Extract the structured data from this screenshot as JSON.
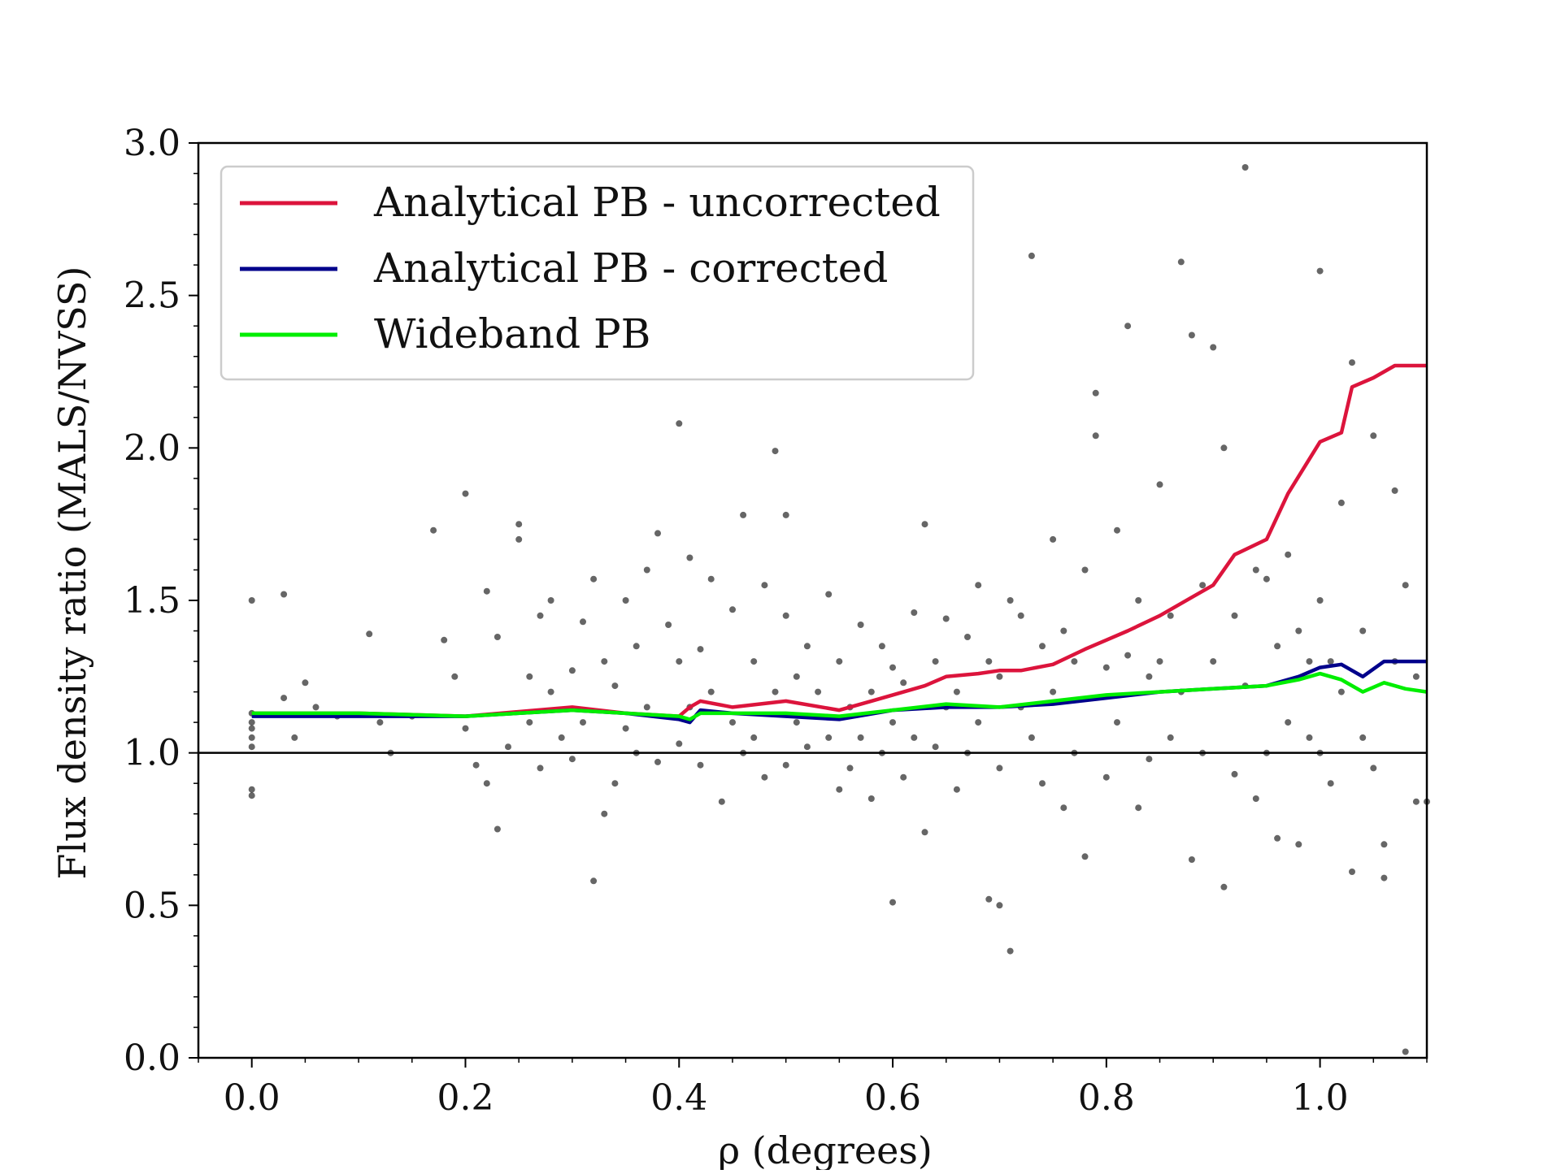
{
  "chart_data": {
    "type": "scatter",
    "title": "",
    "xlabel": "ρ (degrees)",
    "ylabel": "Flux density ratio (MALS/NVSS)",
    "xlim": [
      -0.05,
      1.1
    ],
    "ylim": [
      0.0,
      3.0
    ],
    "x_ticks": [
      "0.0",
      "0.2",
      "0.4",
      "0.6",
      "0.8",
      "1.0"
    ],
    "x_tick_values": [
      0.0,
      0.2,
      0.4,
      0.6,
      0.8,
      1.0
    ],
    "y_ticks": [
      "0.0",
      "0.5",
      "1.0",
      "1.5",
      "2.0",
      "2.5",
      "3.0"
    ],
    "y_tick_values": [
      0.0,
      0.5,
      1.0,
      1.5,
      2.0,
      2.5,
      3.0
    ],
    "reference_line_y": 1.0,
    "grid": false,
    "legend_position": "top-left",
    "series": [
      {
        "name": "Analytical PB - uncorrected",
        "color": "#dc143c",
        "x": [
          0.0,
          0.1,
          0.2,
          0.3,
          0.35,
          0.4,
          0.41,
          0.42,
          0.45,
          0.5,
          0.55,
          0.58,
          0.6,
          0.63,
          0.65,
          0.68,
          0.7,
          0.72,
          0.75,
          0.78,
          0.8,
          0.82,
          0.85,
          0.88,
          0.9,
          0.92,
          0.95,
          0.97,
          1.0,
          1.02,
          1.03,
          1.05,
          1.07,
          1.1
        ],
        "y": [
          1.13,
          1.13,
          1.12,
          1.15,
          1.13,
          1.12,
          1.15,
          1.17,
          1.15,
          1.17,
          1.14,
          1.17,
          1.19,
          1.22,
          1.25,
          1.26,
          1.27,
          1.27,
          1.29,
          1.34,
          1.37,
          1.4,
          1.45,
          1.51,
          1.55,
          1.65,
          1.7,
          1.85,
          2.02,
          2.05,
          2.2,
          2.23,
          2.27,
          2.27
        ]
      },
      {
        "name": "Analytical PB - corrected",
        "color": "#00008b",
        "x": [
          0.0,
          0.1,
          0.2,
          0.3,
          0.35,
          0.4,
          0.41,
          0.42,
          0.45,
          0.5,
          0.55,
          0.6,
          0.65,
          0.7,
          0.75,
          0.8,
          0.85,
          0.9,
          0.95,
          0.98,
          1.0,
          1.02,
          1.04,
          1.06,
          1.08,
          1.1
        ],
        "y": [
          1.12,
          1.12,
          1.12,
          1.14,
          1.13,
          1.11,
          1.1,
          1.14,
          1.13,
          1.12,
          1.11,
          1.14,
          1.15,
          1.15,
          1.16,
          1.18,
          1.2,
          1.21,
          1.22,
          1.25,
          1.28,
          1.29,
          1.25,
          1.3,
          1.3,
          1.3
        ]
      },
      {
        "name": "Wideband PB",
        "color": "#00ee00",
        "x": [
          0.0,
          0.1,
          0.2,
          0.3,
          0.35,
          0.4,
          0.41,
          0.42,
          0.45,
          0.5,
          0.55,
          0.6,
          0.65,
          0.7,
          0.75,
          0.8,
          0.85,
          0.9,
          0.95,
          0.98,
          1.0,
          1.02,
          1.04,
          1.06,
          1.08,
          1.1
        ],
        "y": [
          1.13,
          1.13,
          1.12,
          1.14,
          1.13,
          1.12,
          1.11,
          1.13,
          1.13,
          1.13,
          1.12,
          1.14,
          1.16,
          1.15,
          1.17,
          1.19,
          1.2,
          1.21,
          1.22,
          1.24,
          1.26,
          1.24,
          1.2,
          1.23,
          1.21,
          1.2
        ]
      }
    ],
    "scatter_points": [
      [
        0.0,
        1.5
      ],
      [
        0.0,
        1.1
      ],
      [
        0.0,
        1.05
      ],
      [
        0.0,
        1.02
      ],
      [
        0.0,
        0.88
      ],
      [
        0.0,
        0.86
      ],
      [
        0.0,
        1.13
      ],
      [
        0.0,
        1.08
      ],
      [
        0.03,
        1.52
      ],
      [
        0.03,
        1.18
      ],
      [
        0.04,
        1.05
      ],
      [
        0.05,
        1.23
      ],
      [
        0.06,
        1.15
      ],
      [
        0.08,
        1.12
      ],
      [
        0.11,
        1.39
      ],
      [
        0.12,
        1.1
      ],
      [
        0.13,
        1.0
      ],
      [
        0.15,
        1.12
      ],
      [
        0.17,
        1.73
      ],
      [
        0.18,
        1.37
      ],
      [
        0.19,
        1.25
      ],
      [
        0.2,
        1.85
      ],
      [
        0.2,
        1.08
      ],
      [
        0.21,
        0.96
      ],
      [
        0.22,
        1.53
      ],
      [
        0.22,
        0.9
      ],
      [
        0.23,
        1.38
      ],
      [
        0.23,
        0.75
      ],
      [
        0.24,
        1.02
      ],
      [
        0.25,
        1.75
      ],
      [
        0.25,
        1.7
      ],
      [
        0.26,
        1.25
      ],
      [
        0.26,
        1.1
      ],
      [
        0.27,
        1.45
      ],
      [
        0.27,
        0.95
      ],
      [
        0.28,
        1.5
      ],
      [
        0.28,
        1.2
      ],
      [
        0.29,
        1.05
      ],
      [
        0.3,
        1.27
      ],
      [
        0.3,
        0.98
      ],
      [
        0.31,
        1.43
      ],
      [
        0.31,
        1.1
      ],
      [
        0.32,
        1.57
      ],
      [
        0.32,
        0.58
      ],
      [
        0.33,
        1.3
      ],
      [
        0.33,
        0.8
      ],
      [
        0.34,
        1.22
      ],
      [
        0.34,
        0.9
      ],
      [
        0.35,
        1.5
      ],
      [
        0.35,
        1.08
      ],
      [
        0.36,
        1.35
      ],
      [
        0.36,
        1.0
      ],
      [
        0.37,
        1.6
      ],
      [
        0.37,
        1.15
      ],
      [
        0.38,
        1.72
      ],
      [
        0.38,
        0.97
      ],
      [
        0.39,
        1.42
      ],
      [
        0.4,
        2.08
      ],
      [
        0.4,
        1.3
      ],
      [
        0.4,
        1.03
      ],
      [
        0.41,
        1.64
      ],
      [
        0.41,
        1.15
      ],
      [
        0.42,
        1.34
      ],
      [
        0.42,
        0.96
      ],
      [
        0.43,
        1.57
      ],
      [
        0.43,
        1.2
      ],
      [
        0.44,
        0.84
      ],
      [
        0.45,
        1.47
      ],
      [
        0.45,
        1.1
      ],
      [
        0.46,
        1.78
      ],
      [
        0.46,
        1.0
      ],
      [
        0.47,
        1.3
      ],
      [
        0.47,
        1.05
      ],
      [
        0.48,
        1.55
      ],
      [
        0.48,
        0.92
      ],
      [
        0.49,
        1.99
      ],
      [
        0.49,
        1.2
      ],
      [
        0.5,
        1.78
      ],
      [
        0.5,
        1.45
      ],
      [
        0.5,
        0.96
      ],
      [
        0.51,
        1.25
      ],
      [
        0.51,
        1.1
      ],
      [
        0.52,
        1.35
      ],
      [
        0.52,
        1.02
      ],
      [
        0.53,
        1.2
      ],
      [
        0.54,
        1.52
      ],
      [
        0.54,
        1.05
      ],
      [
        0.55,
        1.3
      ],
      [
        0.55,
        0.88
      ],
      [
        0.56,
        1.15
      ],
      [
        0.56,
        0.95
      ],
      [
        0.57,
        1.42
      ],
      [
        0.57,
        1.05
      ],
      [
        0.58,
        1.2
      ],
      [
        0.58,
        0.85
      ],
      [
        0.59,
        1.35
      ],
      [
        0.59,
        1.0
      ],
      [
        0.6,
        0.51
      ],
      [
        0.6,
        1.28
      ],
      [
        0.6,
        1.1
      ],
      [
        0.61,
        1.23
      ],
      [
        0.61,
        0.92
      ],
      [
        0.62,
        1.46
      ],
      [
        0.62,
        1.05
      ],
      [
        0.63,
        0.74
      ],
      [
        0.63,
        1.75
      ],
      [
        0.64,
        1.3
      ],
      [
        0.64,
        1.02
      ],
      [
        0.65,
        1.44
      ],
      [
        0.65,
        1.15
      ],
      [
        0.66,
        1.2
      ],
      [
        0.66,
        0.88
      ],
      [
        0.67,
        1.38
      ],
      [
        0.67,
        1.0
      ],
      [
        0.68,
        1.55
      ],
      [
        0.68,
        1.1
      ],
      [
        0.69,
        1.3
      ],
      [
        0.69,
        0.52
      ],
      [
        0.7,
        0.5
      ],
      [
        0.7,
        1.25
      ],
      [
        0.7,
        0.95
      ],
      [
        0.71,
        1.5
      ],
      [
        0.71,
        0.35
      ],
      [
        0.72,
        1.15
      ],
      [
        0.72,
        1.45
      ],
      [
        0.73,
        2.63
      ],
      [
        0.73,
        1.05
      ],
      [
        0.74,
        1.35
      ],
      [
        0.74,
        0.9
      ],
      [
        0.75,
        1.7
      ],
      [
        0.75,
        1.2
      ],
      [
        0.76,
        1.4
      ],
      [
        0.76,
        0.82
      ],
      [
        0.77,
        1.3
      ],
      [
        0.77,
        1.0
      ],
      [
        0.78,
        1.6
      ],
      [
        0.78,
        0.66
      ],
      [
        0.79,
        2.18
      ],
      [
        0.79,
        2.04
      ],
      [
        0.8,
        1.28
      ],
      [
        0.8,
        0.92
      ],
      [
        0.81,
        1.73
      ],
      [
        0.81,
        1.1
      ],
      [
        0.82,
        2.4
      ],
      [
        0.82,
        1.32
      ],
      [
        0.83,
        1.5
      ],
      [
        0.83,
        0.82
      ],
      [
        0.84,
        1.25
      ],
      [
        0.84,
        0.98
      ],
      [
        0.85,
        1.88
      ],
      [
        0.85,
        1.3
      ],
      [
        0.86,
        1.45
      ],
      [
        0.86,
        1.05
      ],
      [
        0.87,
        2.61
      ],
      [
        0.87,
        1.2
      ],
      [
        0.88,
        2.37
      ],
      [
        0.88,
        0.65
      ],
      [
        0.89,
        1.55
      ],
      [
        0.89,
        1.0
      ],
      [
        0.9,
        2.33
      ],
      [
        0.9,
        1.3
      ],
      [
        0.91,
        2.0
      ],
      [
        0.91,
        0.56
      ],
      [
        0.92,
        1.45
      ],
      [
        0.92,
        0.93
      ],
      [
        0.93,
        2.92
      ],
      [
        0.93,
        1.22
      ],
      [
        0.94,
        1.6
      ],
      [
        0.94,
        0.85
      ],
      [
        0.95,
        1.57
      ],
      [
        0.95,
        1.0
      ],
      [
        0.96,
        1.35
      ],
      [
        0.96,
        0.72
      ],
      [
        0.97,
        1.65
      ],
      [
        0.97,
        1.1
      ],
      [
        0.98,
        1.4
      ],
      [
        0.98,
        0.7
      ],
      [
        0.99,
        1.3
      ],
      [
        0.99,
        1.05
      ],
      [
        1.0,
        2.58
      ],
      [
        1.0,
        1.5
      ],
      [
        1.0,
        1.0
      ],
      [
        1.01,
        1.3
      ],
      [
        1.01,
        0.9
      ],
      [
        1.02,
        1.82
      ],
      [
        1.02,
        1.2
      ],
      [
        1.03,
        2.28
      ],
      [
        1.03,
        0.61
      ],
      [
        1.04,
        1.4
      ],
      [
        1.04,
        1.05
      ],
      [
        1.05,
        2.04
      ],
      [
        1.05,
        0.95
      ],
      [
        1.06,
        0.7
      ],
      [
        1.06,
        0.59
      ],
      [
        1.07,
        1.86
      ],
      [
        1.07,
        1.3
      ],
      [
        1.08,
        1.55
      ],
      [
        1.08,
        0.02
      ],
      [
        1.09,
        1.25
      ],
      [
        1.09,
        0.84
      ],
      [
        1.1,
        0.84
      ]
    ]
  }
}
